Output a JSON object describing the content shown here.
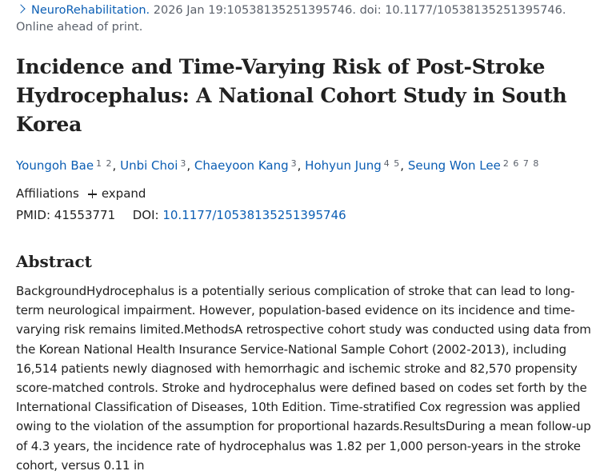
{
  "citation": {
    "journal": "NeuroRehabilitation.",
    "details": " 2026 Jan 19:10538135251395746. doi: 10.1177/10538135251395746.",
    "status": "Online ahead of print."
  },
  "article": {
    "title": "Incidence and Time-Varying Risk of Post-Stroke Hydrocephalus: A National Cohort Study in South Korea"
  },
  "authors": [
    {
      "name": "Youngoh Bae",
      "affil": "1 2"
    },
    {
      "name": "Unbi Choi",
      "affil": "3"
    },
    {
      "name": "Chaeyoon Kang",
      "affil": "3"
    },
    {
      "name": "Hohyun Jung",
      "affil": "4 5"
    },
    {
      "name": "Seung Won Lee",
      "affil": "2 6 7 8"
    }
  ],
  "affiliations": {
    "label": "Affiliations",
    "expand": "expand"
  },
  "ids": {
    "pmid_label": "PMID:",
    "pmid": "41553771",
    "doi_label": "DOI:",
    "doi": "10.1177/10538135251395746"
  },
  "abstract": {
    "heading": "Abstract",
    "text": "BackgroundHydrocephalus is a potentially serious complication of stroke that can lead to long-term neurological impairment. However, population-based evidence on its incidence and time-varying risk remains limited.MethodsA retrospective cohort study was conducted using data from the Korean National Health Insurance Service-National Sample Cohort (2002-2013), including 16,514 patients newly diagnosed with hemorrhagic and ischemic stroke and 82,570 propensity score-matched controls. Stroke and hydrocephalus were defined based on codes set forth by the International Classification of Diseases, 10th Edition. Time-stratified Cox regression was applied owing to the violation of the assumption for proportional hazards.ResultsDuring a mean follow-up of 4.3 years, the incidence rate of hydrocephalus was 1.82 per 1,000 person-years in the stroke cohort, versus 0.11 in"
  }
}
